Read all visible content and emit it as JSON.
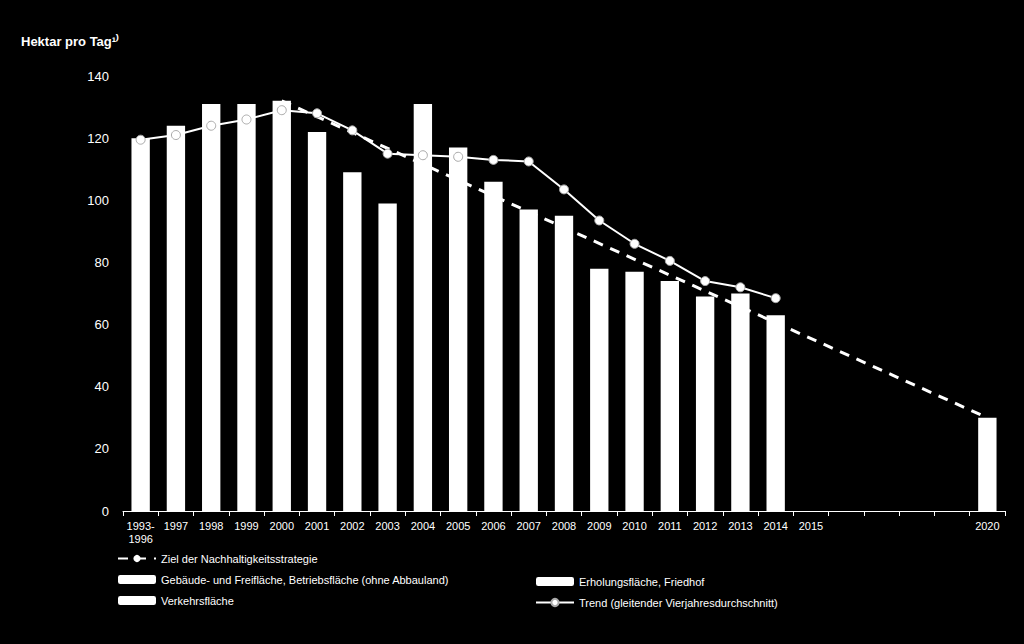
{
  "chart_data": {
    "type": "bar",
    "y_label": "Hektar pro Tag¹⁾",
    "categories": [
      "1993-\n1996",
      "1997",
      "1998",
      "1999",
      "2000",
      "2001",
      "2002",
      "2003",
      "2004",
      "2005",
      "2006",
      "2007",
      "2008",
      "2009",
      "2010",
      "2011",
      "2012",
      "2013",
      "2014",
      "2015",
      null,
      null,
      null,
      null,
      "2020"
    ],
    "series": [
      {
        "name": "Ziel der Nachhaltigkeitsstrategie",
        "type": "line",
        "line_style": "dashed",
        "marker": "none",
        "color": "#ffffff",
        "values": [
          null,
          null,
          null,
          null,
          132,
          null,
          null,
          null,
          null,
          null,
          null,
          null,
          null,
          null,
          null,
          null,
          null,
          null,
          null,
          null,
          null,
          null,
          null,
          null,
          30
        ]
      },
      {
        "name": "Gebäude- und Freifläche, Betriebsfläche (ohne Abbauland)",
        "type": "bar",
        "color": "#ffffff",
        "values": [
          120,
          124,
          131,
          131,
          132,
          122,
          109,
          99,
          131,
          117,
          106,
          97,
          95,
          78,
          77,
          74,
          69,
          70,
          63,
          null,
          null,
          null,
          null,
          null,
          30
        ]
      },
      {
        "name": "Erholungsfläche, Friedhof",
        "type": "bar",
        "color": "#ffffff",
        "values": [
          null,
          null,
          null,
          null,
          null,
          null,
          null,
          null,
          null,
          null,
          null,
          null,
          null,
          null,
          null,
          null,
          null,
          null,
          null,
          null,
          null,
          null,
          null,
          null,
          null
        ]
      },
      {
        "name": "Verkehrsfläche",
        "type": "bar",
        "color": "#ffffff",
        "values": [
          null,
          null,
          null,
          null,
          null,
          null,
          null,
          null,
          null,
          null,
          null,
          null,
          null,
          null,
          null,
          null,
          null,
          null,
          null,
          null,
          null,
          null,
          null,
          null,
          null
        ]
      },
      {
        "name": "Trend (gleitender Vierjahresdurchschnitt)",
        "type": "line",
        "line_style": "solid",
        "marker": "circle",
        "color": "#ffffff",
        "values": [
          119.5,
          121,
          124,
          126,
          129,
          128,
          122.5,
          115,
          114.5,
          114,
          113,
          112.5,
          103.5,
          93.5,
          86,
          80.5,
          74,
          72,
          68.5,
          null,
          null,
          null,
          null,
          null,
          null
        ]
      }
    ],
    "ylim": [
      0,
      140
    ],
    "yticks": [
      0,
      20,
      40,
      60,
      80,
      100,
      120,
      140
    ],
    "grid": false,
    "stacked": true,
    "legend": "bottom"
  }
}
